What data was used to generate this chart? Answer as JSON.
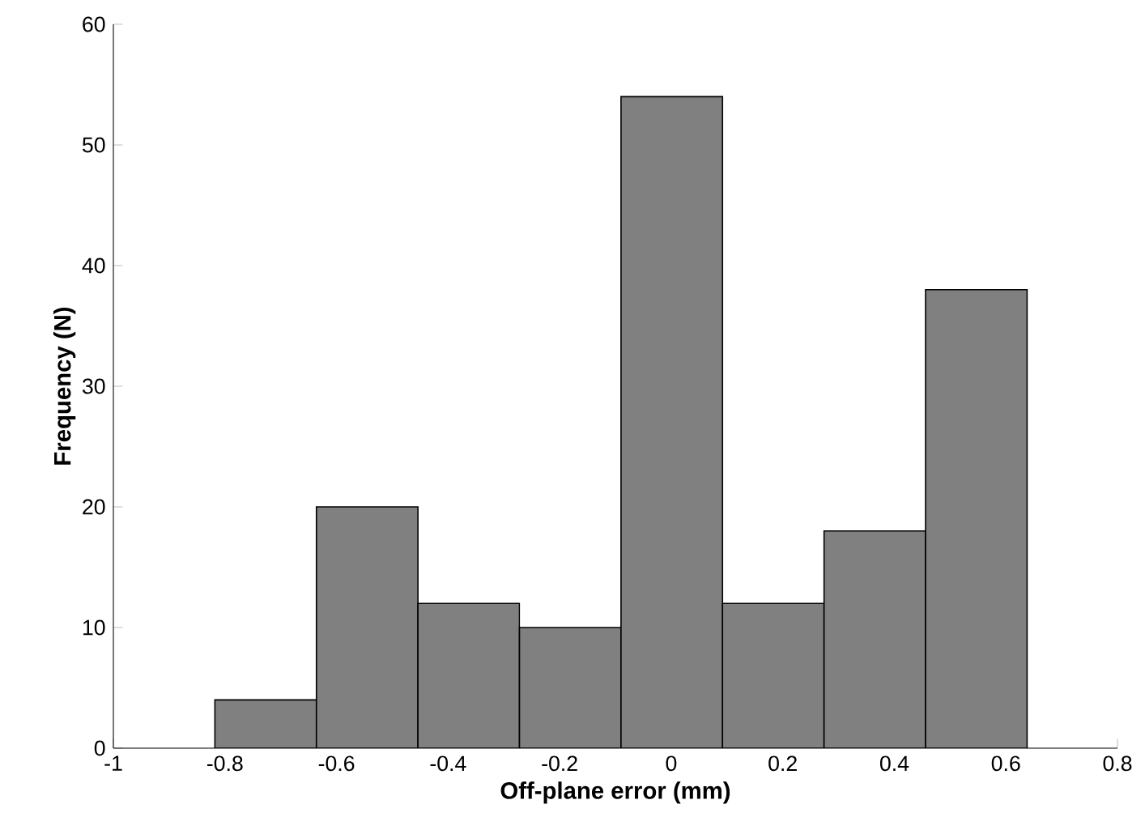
{
  "chart_data": {
    "type": "histogram",
    "xlabel": "Off-plane error (mm)",
    "ylabel": "Frequency (N)",
    "bins": [
      -0.818,
      -0.636,
      -0.454,
      -0.272,
      -0.09,
      0.092,
      0.274,
      0.456,
      0.638
    ],
    "values": [
      4,
      20,
      12,
      10,
      54,
      12,
      18,
      38
    ],
    "color": "#808080",
    "xlim": [
      -1,
      0.8
    ],
    "ylim": [
      0,
      60
    ],
    "xticks": [
      -1,
      -0.8,
      -0.6,
      -0.4,
      -0.2,
      0,
      0.2,
      0.4,
      0.6,
      0.8
    ],
    "yticks": [
      0,
      10,
      20,
      30,
      40,
      50,
      60
    ]
  }
}
